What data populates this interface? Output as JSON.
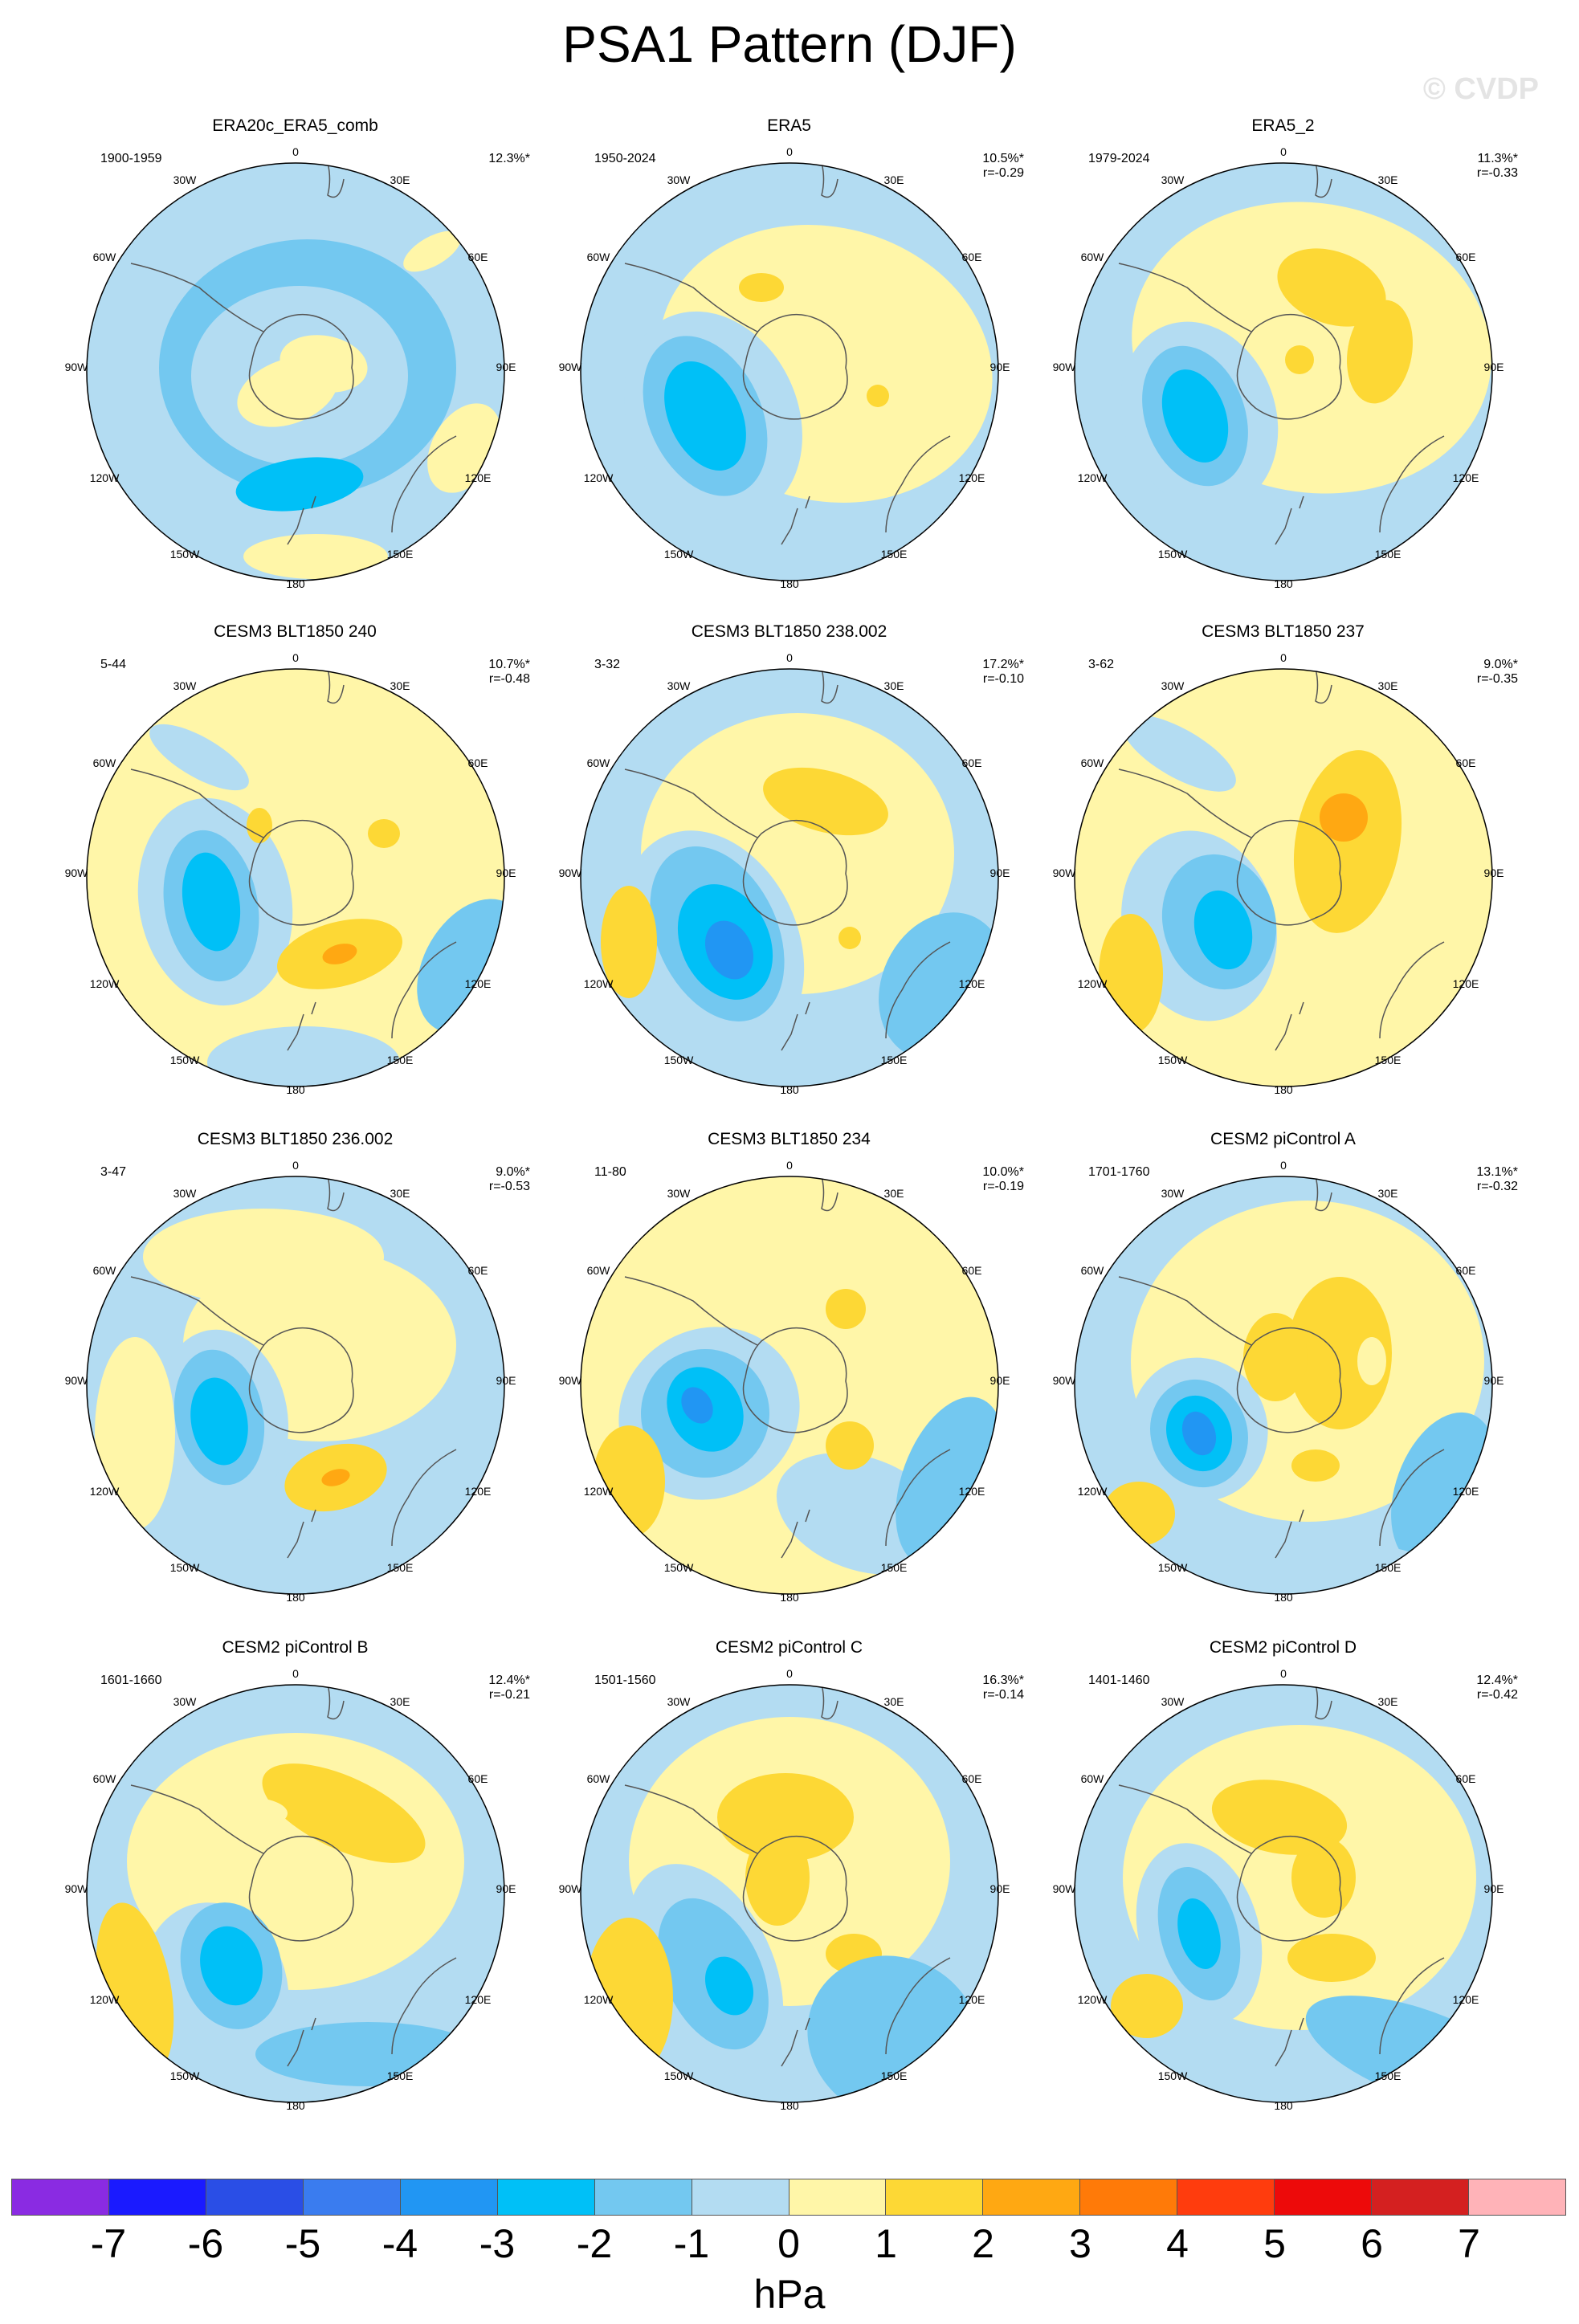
{
  "title": "PSA1 Pattern (DJF)",
  "watermark": "© CVDP",
  "colors": {
    "c_neg7": "#8a2be2",
    "c_neg6": "#1a1aff",
    "c_neg5": "#2a4ee6",
    "c_neg4": "#3a7cef",
    "c_neg3": "#2196f3",
    "c_neg2": "#00c0f7",
    "c_neg1": "#73c8f0",
    "c_neg0": "#b3dcf2",
    "c_pos0": "#fff6a8",
    "c_pos1": "#fdd835",
    "c_pos2": "#ffa812",
    "c_pos3": "#ff7a08",
    "c_pos4": "#ff3c0d",
    "c_pos5": "#ed0a0a",
    "c_pos6": "#d42020",
    "c_pos7": "#ffb3b8"
  },
  "longitude_labels": {
    "top": "0",
    "ne": "30E",
    "ene": "60E",
    "e": "90E",
    "ese": "120E",
    "se": "150E",
    "bottom": "180",
    "sw": "150W",
    "wsw": "120W",
    "w": "90W",
    "wnw": "60W",
    "nw": "30W"
  },
  "panels": [
    {
      "title": "ERA20c_ERA5_comb",
      "years": "1900-1959",
      "pct": "12.3%*",
      "corr": ""
    },
    {
      "title": "ERA5",
      "years": "1950-2024",
      "pct": "10.5%*",
      "corr": "r=-0.29"
    },
    {
      "title": "ERA5_2",
      "years": "1979-2024",
      "pct": "11.3%*",
      "corr": "r=-0.33"
    },
    {
      "title": "CESM3 BLT1850 240",
      "years": "5-44",
      "pct": "10.7%*",
      "corr": "r=-0.48"
    },
    {
      "title": "CESM3 BLT1850 238.002",
      "years": "3-32",
      "pct": "17.2%*",
      "corr": "r=-0.10"
    },
    {
      "title": "CESM3 BLT1850 237",
      "years": "3-62",
      "pct": "9.0%*",
      "corr": "r=-0.35"
    },
    {
      "title": "CESM3 BLT1850 236.002",
      "years": "3-47",
      "pct": "9.0%*",
      "corr": "r=-0.53"
    },
    {
      "title": "CESM3 BLT1850 234",
      "years": "11-80",
      "pct": "10.0%*",
      "corr": "r=-0.19"
    },
    {
      "title": "CESM2 piControl A",
      "years": "1701-1760",
      "pct": "13.1%*",
      "corr": "r=-0.32"
    },
    {
      "title": "CESM2 piControl B",
      "years": "1601-1660",
      "pct": "12.4%*",
      "corr": "r=-0.21"
    },
    {
      "title": "CESM2 piControl C",
      "years": "1501-1560",
      "pct": "16.3%*",
      "corr": "r=-0.14"
    },
    {
      "title": "CESM2 piControl D",
      "years": "1401-1460",
      "pct": "12.4%*",
      "corr": "r=-0.42"
    }
  ],
  "colorbar": {
    "labels": [
      "-7",
      "-6",
      "-5",
      "-4",
      "-3",
      "-2",
      "-1",
      "0",
      "1",
      "2",
      "3",
      "4",
      "5",
      "6",
      "7"
    ],
    "units": "hPa"
  }
}
